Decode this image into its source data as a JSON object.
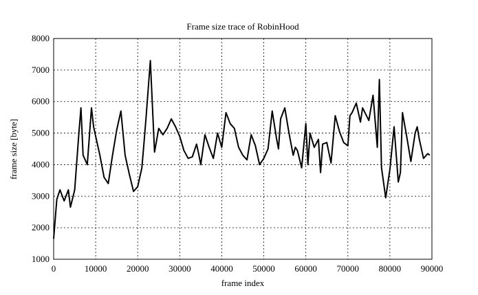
{
  "chart_data": {
    "type": "line",
    "title": "Frame size trace of RobinHood",
    "xlabel": "frame index",
    "ylabel": "frame size [byte]",
    "xlim": [
      0,
      90000
    ],
    "ylim": [
      1000,
      8000
    ],
    "xticks": [
      0,
      10000,
      20000,
      30000,
      40000,
      50000,
      60000,
      70000,
      80000,
      90000
    ],
    "yticks": [
      1000,
      2000,
      3000,
      4000,
      5000,
      6000,
      7000,
      8000
    ],
    "grid": true,
    "series": [
      {
        "x": [
          0,
          750,
          1500,
          2500,
          3500,
          4000,
          5000,
          6000,
          6500,
          7000,
          8000,
          9000,
          9500,
          10000,
          11000,
          12000,
          13000,
          14000,
          15000,
          16000,
          17000,
          18000,
          19000,
          20000,
          21000,
          21500,
          22000,
          23000,
          24000,
          25000,
          26000,
          27000,
          28000,
          29000,
          30000,
          31000,
          32000,
          33000,
          34000,
          34500,
          35000,
          36000,
          37000,
          38000,
          39000,
          40000,
          41000,
          42000,
          43000,
          44000,
          45000,
          46000,
          47000,
          48000,
          49000,
          50000,
          51000,
          52000,
          53000,
          53500,
          54000,
          55000,
          56000,
          57000,
          57500,
          58000,
          59000,
          60000,
          60500,
          61000,
          62000,
          63000,
          63500,
          64000,
          65000,
          66000,
          67000,
          68000,
          69000,
          70000,
          70500,
          71000,
          72000,
          73000,
          73500,
          75000,
          76000,
          77000,
          77500,
          78000,
          79000,
          80000,
          81000,
          82000,
          82500,
          83000,
          84000,
          85000,
          86000,
          86500,
          87000,
          88000,
          89000,
          89500
        ],
        "y": [
          1650,
          2900,
          3200,
          2850,
          3200,
          2650,
          3200,
          5000,
          5800,
          4300,
          4000,
          5800,
          5200,
          4900,
          4300,
          3600,
          3400,
          4300,
          5100,
          5700,
          4300,
          3700,
          3150,
          3300,
          3900,
          4700,
          5500,
          7300,
          4400,
          5150,
          4950,
          5150,
          5450,
          5200,
          4900,
          4450,
          4200,
          4250,
          4650,
          4350,
          4000,
          4950,
          4550,
          4200,
          5000,
          4550,
          5650,
          5300,
          5150,
          4550,
          4300,
          4150,
          4950,
          4600,
          4000,
          4200,
          4500,
          5700,
          4850,
          4500,
          5450,
          5800,
          5000,
          4300,
          4550,
          4450,
          3900,
          5300,
          4000,
          5000,
          4550,
          4800,
          3750,
          4650,
          4700,
          4050,
          5550,
          5050,
          4700,
          4600,
          5550,
          5650,
          5950,
          5350,
          5800,
          5400,
          6200,
          4550,
          6700,
          3900,
          2950,
          3850,
          5200,
          3450,
          3750,
          5650,
          4900,
          4100,
          5000,
          5200,
          4800,
          4200,
          4350,
          4300
        ]
      }
    ]
  }
}
